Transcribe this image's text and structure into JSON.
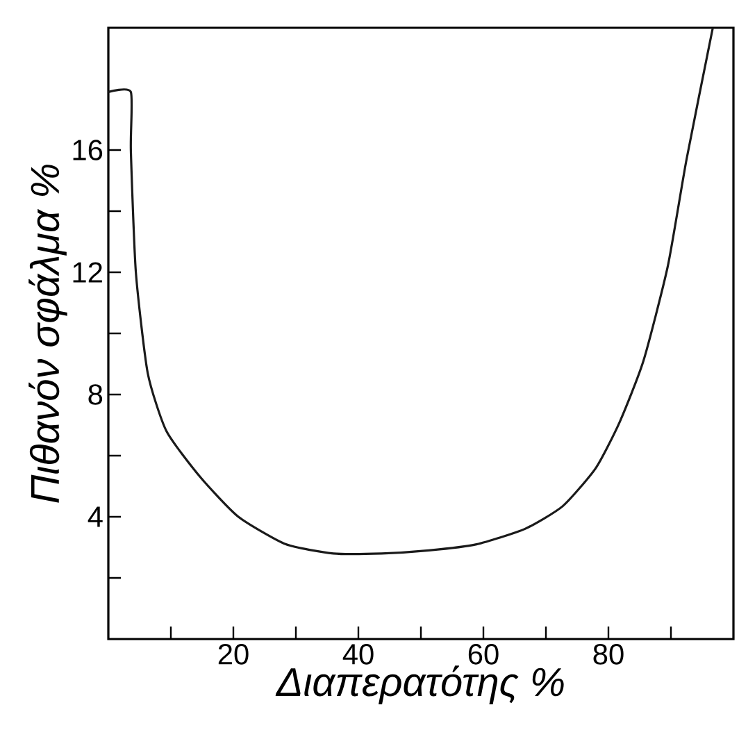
{
  "chart_data": {
    "type": "line",
    "xlabel": "Διαπερατότης %",
    "ylabel": "Πιθανόν σφάλμα %",
    "x": [
      0,
      3.6,
      3.6,
      4.4,
      6.3,
      9.3,
      14.7,
      20.8,
      28.4,
      36,
      43.7,
      51.3,
      58.9,
      66.6,
      72.7,
      78,
      81.8,
      85.6,
      89.5,
      92.5,
      96.7
    ],
    "series": [
      {
        "color": "#1a1a1a",
        "values": [
          17.9,
          17.9,
          16.0,
          12.0,
          8.7,
          6.8,
          5.3,
          4.0,
          3.1,
          2.8,
          2.8,
          2.9,
          3.1,
          3.6,
          4.35,
          5.6,
          7.1,
          9.1,
          12.2,
          15.7,
          20
        ]
      }
    ],
    "xlim": [
      0,
      100
    ],
    "ylim": [
      0,
      20
    ],
    "xticks": [
      {
        "value": 10,
        "label": null
      },
      20,
      {
        "value": 30,
        "label": null
      },
      40,
      {
        "value": 50,
        "label": null
      },
      60,
      {
        "value": 70,
        "label": null
      },
      80,
      {
        "value": 90,
        "label": null
      }
    ],
    "yticks": [
      {
        "value": 2,
        "label": null
      },
      4,
      {
        "value": 6,
        "label": null
      },
      8,
      {
        "value": 10,
        "label": null
      },
      12,
      {
        "value": 14,
        "label": null
      },
      16
    ],
    "marker": "none",
    "line_style": "solid"
  }
}
